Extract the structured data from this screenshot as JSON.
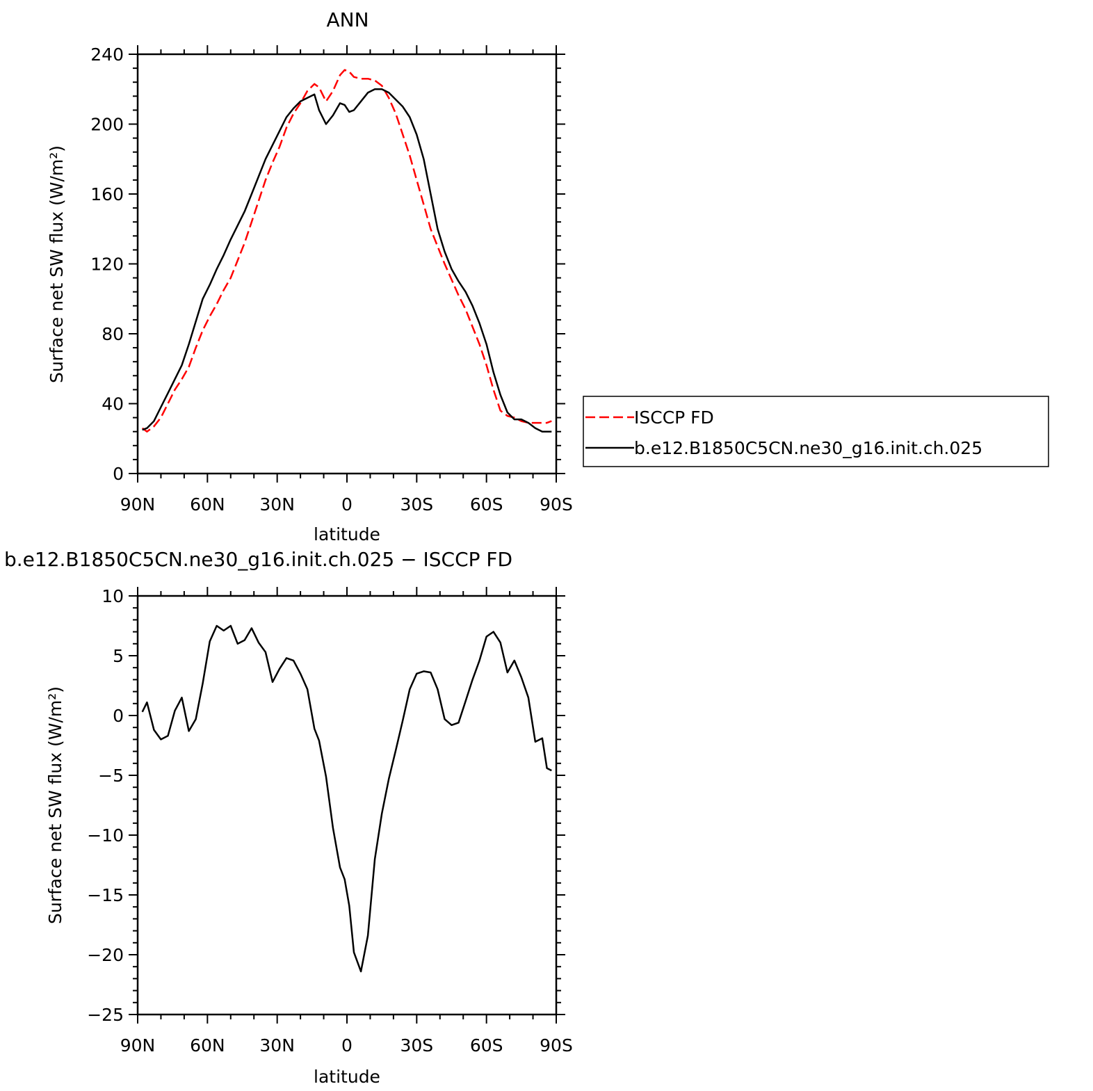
{
  "chart_data": [
    {
      "type": "line",
      "title": "ANN",
      "xlabel": "latitude",
      "ylabel": "Surface net SW flux (W/m²)",
      "xlim": [
        90,
        -90
      ],
      "ylim": [
        0,
        240
      ],
      "x_ticks": [
        90,
        60,
        30,
        0,
        -30,
        -60,
        -90
      ],
      "x_tick_labels": [
        "90N",
        "60N",
        "30N",
        "0",
        "30S",
        "60S",
        "90S"
      ],
      "y_ticks": [
        0,
        40,
        80,
        120,
        160,
        200,
        240
      ],
      "y_tick_labels": [
        "0",
        "40",
        "80",
        "120",
        "160",
        "200",
        "240"
      ],
      "legend": {
        "position": "right"
      },
      "series": [
        {
          "name": "ISCCP FD",
          "color": "#ff0000",
          "dash": "dashed",
          "x": [
            88,
            86,
            83,
            80,
            77,
            74,
            71,
            68,
            65,
            62,
            59,
            56,
            53,
            50,
            47,
            44,
            41,
            38,
            35,
            32,
            29,
            26,
            23,
            20,
            17,
            14,
            12,
            9,
            6,
            3,
            1,
            -1,
            -3,
            -6,
            -9,
            -12,
            -15,
            -18,
            -21,
            -24,
            -27,
            -30,
            -33,
            -36,
            -39,
            -42,
            -45,
            -48,
            -51,
            -54,
            -57,
            -60,
            -63,
            -66,
            -69,
            -72,
            -75,
            -78,
            -81,
            -84,
            -86,
            -88
          ],
          "y": [
            26,
            24,
            27,
            32,
            40,
            48,
            54,
            61,
            72,
            82,
            90,
            97,
            105,
            112,
            122,
            132,
            144,
            156,
            168,
            178,
            187,
            198,
            206,
            212,
            219,
            223,
            221,
            213,
            219,
            228,
            231,
            230,
            227,
            226,
            226,
            225,
            222,
            215,
            206,
            194,
            182,
            168,
            154,
            140,
            130,
            120,
            111,
            102,
            94,
            84,
            74,
            62,
            48,
            36,
            33,
            32,
            30,
            29,
            29,
            29,
            29,
            30
          ]
        },
        {
          "name": "b.e12.B1850C5CN.ne30_g16.init.ch.025",
          "color": "#000000",
          "dash": "solid",
          "x": [
            88,
            86,
            83,
            80,
            77,
            74,
            71,
            68,
            65,
            62,
            59,
            56,
            53,
            50,
            47,
            44,
            41,
            38,
            35,
            32,
            29,
            26,
            23,
            20,
            17,
            14,
            12,
            9,
            6,
            3,
            1,
            -1,
            -3,
            -6,
            -9,
            -12,
            -15,
            -18,
            -21,
            -24,
            -27,
            -30,
            -33,
            -36,
            -39,
            -42,
            -45,
            -48,
            -51,
            -54,
            -57,
            -60,
            -63,
            -66,
            -69,
            -72,
            -75,
            -78,
            -81,
            -84,
            -86,
            -88
          ],
          "y": [
            25,
            26,
            30,
            38,
            46,
            54,
            62,
            74,
            87,
            100,
            108,
            117,
            125,
            134,
            142,
            150,
            160,
            170,
            180,
            188,
            196,
            204,
            209,
            213,
            215,
            217,
            208,
            200,
            205,
            212,
            211,
            207,
            208,
            213,
            218,
            220,
            220,
            218,
            214,
            210,
            204,
            194,
            180,
            160,
            140,
            127,
            117,
            110,
            104,
            96,
            86,
            74,
            58,
            45,
            35,
            31,
            31,
            29,
            26,
            24,
            24,
            24
          ]
        }
      ]
    },
    {
      "type": "line",
      "title": "b.e12.B1850C5CN.ne30_g16.init.ch.025 − ISCCP FD",
      "xlabel": "latitude",
      "ylabel": "Surface net SW flux (W/m²)",
      "xlim": [
        90,
        -90
      ],
      "ylim": [
        -25,
        10
      ],
      "x_ticks": [
        90,
        60,
        30,
        0,
        -30,
        -60,
        -90
      ],
      "x_tick_labels": [
        "90N",
        "60N",
        "30N",
        "0",
        "30S",
        "60S",
        "90S"
      ],
      "y_ticks": [
        10,
        5,
        0,
        -5,
        -10,
        -15,
        -20,
        -25
      ],
      "y_tick_labels": [
        "10",
        "5",
        "0",
        "−5",
        "−10",
        "−15",
        "−20",
        "−25"
      ],
      "series": [
        {
          "color": "#000000",
          "dash": "solid",
          "x": [
            88,
            86,
            83,
            80,
            77,
            74,
            71,
            68,
            65,
            62,
            59,
            56,
            53,
            50,
            47,
            44,
            41,
            38,
            35,
            32,
            29,
            26,
            23,
            20,
            17,
            14,
            12,
            9,
            6,
            3,
            1,
            -1,
            -3,
            -6,
            -9,
            -12,
            -15,
            -18,
            -21,
            -24,
            -27,
            -30,
            -33,
            -36,
            -39,
            -42,
            -45,
            -48,
            -51,
            -54,
            -57,
            -60,
            -63,
            -66,
            -69,
            -72,
            -75,
            -78,
            -81,
            -84,
            -86,
            -88
          ],
          "y": [
            0.3,
            1.1,
            -1.2,
            -2.0,
            -1.7,
            0.4,
            1.5,
            -1.3,
            -0.3,
            2.7,
            6.2,
            7.5,
            7.1,
            7.5,
            6.0,
            6.3,
            7.3,
            6.1,
            5.3,
            2.8,
            3.9,
            4.8,
            4.6,
            3.5,
            2.2,
            -1.1,
            -2.1,
            -5.1,
            -9.4,
            -12.7,
            -13.7,
            -15.9,
            -19.8,
            -21.4,
            -18.4,
            -12.0,
            -8.2,
            -5.3,
            -2.9,
            -0.4,
            2.2,
            3.5,
            3.7,
            3.6,
            2.2,
            -0.3,
            -0.8,
            -0.6,
            1.2,
            3.0,
            4.6,
            6.6,
            7.0,
            6.1,
            3.6,
            4.6,
            3.2,
            1.5,
            -2.2,
            -1.9,
            -4.4,
            -4.6
          ]
        }
      ]
    }
  ]
}
